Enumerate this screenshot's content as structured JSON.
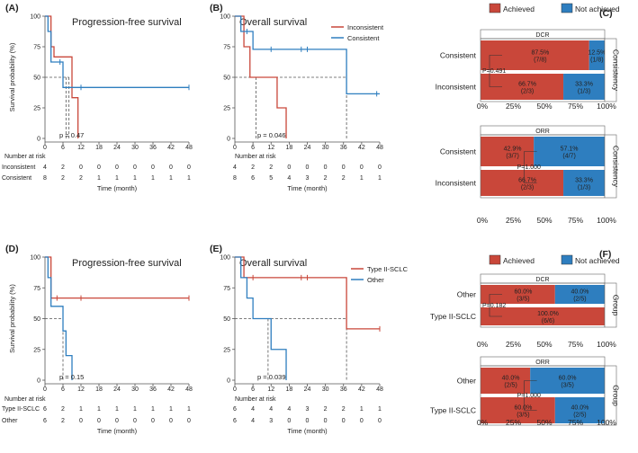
{
  "colors": {
    "red": "#c9473a",
    "blue": "#2e7ebf",
    "dash": "#555555",
    "axis": "#555555"
  },
  "chart_data": [
    {
      "id": "A",
      "type": "line",
      "label": "(A)",
      "title": "Progression-free survival",
      "ylabel": "Survival probability (%)",
      "xlabel": "Time (month)",
      "xticks": [
        "0",
        "6",
        "12",
        "18",
        "24",
        "30",
        "36",
        "42",
        "48"
      ],
      "yticks": [
        "0",
        "25",
        "50",
        "75",
        "100"
      ],
      "xlim": [
        0,
        48
      ],
      "ylim": [
        0,
        100
      ],
      "pvalue": "p = 0.47",
      "series": [
        {
          "name": "Inconsistent",
          "color": "red",
          "steps": [
            [
              0,
              100
            ],
            [
              1,
              100
            ],
            [
              2,
              75
            ],
            [
              3,
              66.7
            ],
            [
              9,
              33.3
            ],
            [
              11,
              0
            ]
          ],
          "censors": []
        },
        {
          "name": "Consistent",
          "color": "blue",
          "steps": [
            [
              0,
              100
            ],
            [
              1,
              87.5
            ],
            [
              2,
              62.5
            ],
            [
              6,
              41.7
            ],
            [
              48,
              41.7
            ]
          ],
          "censors": [
            [
              5,
              62.5
            ],
            [
              12,
              41.7
            ],
            [
              48,
              41.7
            ]
          ]
        }
      ],
      "medians": [
        7,
        8
      ],
      "risk_title": "Number at risk",
      "risk_rows": [
        {
          "label": "Inconsistent",
          "values": [
            "4",
            "2",
            "0",
            "0",
            "0",
            "0",
            "0",
            "0",
            "0"
          ]
        },
        {
          "label": "Consistent",
          "values": [
            "8",
            "2",
            "2",
            "1",
            "1",
            "1",
            "1",
            "1",
            "1"
          ]
        }
      ]
    },
    {
      "id": "B",
      "type": "line",
      "label": "(B)",
      "title": "Overall survival",
      "ylabel": "",
      "xlabel": "Time (month)",
      "xticks": [
        "0",
        "6",
        "12",
        "18",
        "24",
        "30",
        "36",
        "42",
        "48"
      ],
      "yticks": [
        "0",
        "25",
        "50",
        "75",
        "100"
      ],
      "xlim": [
        0,
        48
      ],
      "ylim": [
        0,
        100
      ],
      "pvalue": "p = 0.046",
      "legend": [
        "Inconsistent",
        "Consistent"
      ],
      "series": [
        {
          "name": "Inconsistent",
          "color": "red",
          "steps": [
            [
              0,
              100
            ],
            [
              3,
              75
            ],
            [
              5,
              50
            ],
            [
              12,
              50
            ],
            [
              14,
              25
            ],
            [
              17,
              0
            ]
          ],
          "censors": []
        },
        {
          "name": "Consistent",
          "color": "blue",
          "steps": [
            [
              0,
              100
            ],
            [
              2,
              87.5
            ],
            [
              6,
              72.9
            ],
            [
              37,
              36.5
            ],
            [
              48,
              36.5
            ]
          ],
          "censors": [
            [
              4,
              87.5
            ],
            [
              12,
              72.9
            ],
            [
              22,
              72.9
            ],
            [
              24,
              72.9
            ],
            [
              47,
              36.5
            ]
          ]
        }
      ],
      "medians": [
        7,
        37
      ],
      "risk_title": "Number at risk",
      "risk_rows": [
        {
          "label": "",
          "values": [
            "4",
            "2",
            "2",
            "0",
            "0",
            "0",
            "0",
            "0",
            "0"
          ]
        },
        {
          "label": "",
          "values": [
            "8",
            "6",
            "5",
            "4",
            "3",
            "2",
            "2",
            "1",
            "1"
          ]
        }
      ]
    },
    {
      "id": "C",
      "type": "bar",
      "label": "(C)",
      "legend": [
        "Achieved",
        "Not achieved"
      ],
      "xticks": [
        "0%",
        "25%",
        "50%",
        "75%",
        "100%"
      ],
      "side_label": "Consistency",
      "groups": [
        {
          "title": "DCR",
          "pvalue": "P=0.491",
          "rows": [
            {
              "category": "Consistent",
              "achieved": 87.5,
              "achieved_label": "87.5%",
              "achieved_count": "(7/8)",
              "not_achieved": 12.5,
              "not_label": "12.5%",
              "not_count": "(1/8)"
            },
            {
              "category": "Inconsistent",
              "achieved": 66.7,
              "achieved_label": "66.7%",
              "achieved_count": "(2/3)",
              "not_achieved": 33.3,
              "not_label": "33.3%",
              "not_count": "(1/3)"
            }
          ]
        },
        {
          "title": "ORR",
          "pvalue": "P=1.000",
          "rows": [
            {
              "category": "Consistent",
              "achieved": 42.9,
              "achieved_label": "42.9%",
              "achieved_count": "(3/7)",
              "not_achieved": 57.1,
              "not_label": "57.1%",
              "not_count": "(4/7)"
            },
            {
              "category": "Inconsistent",
              "achieved": 66.7,
              "achieved_label": "66.7%",
              "achieved_count": "(2/3)",
              "not_achieved": 33.3,
              "not_label": "33.3%",
              "not_count": "(1/3)"
            }
          ]
        }
      ]
    },
    {
      "id": "D",
      "type": "line",
      "label": "(D)",
      "title": "Progression-free survival",
      "ylabel": "Survival probability (%)",
      "xlabel": "Time (month)",
      "xticks": [
        "0",
        "6",
        "12",
        "18",
        "24",
        "30",
        "36",
        "42",
        "48"
      ],
      "yticks": [
        "0",
        "25",
        "50",
        "75",
        "100"
      ],
      "xlim": [
        0,
        48
      ],
      "ylim": [
        0,
        100
      ],
      "pvalue": "p = 0.15",
      "series": [
        {
          "name": "Type II-SCLC",
          "color": "red",
          "steps": [
            [
              0,
              100
            ],
            [
              2,
              66.7
            ],
            [
              48,
              66.7
            ]
          ],
          "censors": [
            [
              4,
              66.7
            ],
            [
              12,
              66.7
            ],
            [
              48,
              66.7
            ]
          ]
        },
        {
          "name": "Other",
          "color": "blue",
          "steps": [
            [
              0,
              100
            ],
            [
              1,
              83.3
            ],
            [
              2,
              60
            ],
            [
              6,
              40
            ],
            [
              7,
              20
            ],
            [
              9,
              0
            ]
          ],
          "censors": []
        }
      ],
      "medians": [
        6
      ],
      "risk_title": "Number at risk",
      "risk_rows": [
        {
          "label": "Type II-SCLC",
          "values": [
            "6",
            "2",
            "1",
            "1",
            "1",
            "1",
            "1",
            "1",
            "1"
          ]
        },
        {
          "label": "Other",
          "values": [
            "6",
            "2",
            "0",
            "0",
            "0",
            "0",
            "0",
            "0",
            "0"
          ]
        }
      ]
    },
    {
      "id": "E",
      "type": "line",
      "label": "(E)",
      "title": "Overall survival",
      "ylabel": "",
      "xlabel": "Time (month)",
      "xticks": [
        "0",
        "6",
        "12",
        "18",
        "24",
        "30",
        "36",
        "42",
        "48"
      ],
      "yticks": [
        "0",
        "25",
        "50",
        "75",
        "100"
      ],
      "xlim": [
        0,
        48
      ],
      "ylim": [
        0,
        100
      ],
      "pvalue": "p = 0.039",
      "legend": [
        "Type II-SCLC",
        "Other"
      ],
      "series": [
        {
          "name": "Type II-SCLC",
          "color": "red",
          "steps": [
            [
              0,
              100
            ],
            [
              3,
              83.3
            ],
            [
              37,
              41.7
            ],
            [
              48,
              41.7
            ]
          ],
          "censors": [
            [
              6,
              83.3
            ],
            [
              22,
              83.3
            ],
            [
              24,
              83.3
            ],
            [
              48,
              41.7
            ]
          ]
        },
        {
          "name": "Other",
          "color": "blue",
          "steps": [
            [
              0,
              100
            ],
            [
              2,
              83.3
            ],
            [
              4,
              66.7
            ],
            [
              6,
              50
            ],
            [
              12,
              25
            ],
            [
              17,
              0
            ]
          ],
          "censors": []
        }
      ],
      "medians": [
        11,
        37
      ],
      "risk_title": "Number at risk",
      "risk_rows": [
        {
          "label": "",
          "values": [
            "6",
            "4",
            "4",
            "4",
            "3",
            "2",
            "2",
            "1",
            "1"
          ]
        },
        {
          "label": "",
          "values": [
            "6",
            "4",
            "3",
            "0",
            "0",
            "0",
            "0",
            "0",
            "0"
          ]
        }
      ]
    },
    {
      "id": "F",
      "type": "bar",
      "label": "(F)",
      "legend": [
        "Achieved",
        "Not achieved"
      ],
      "xticks": [
        "0%",
        "25%",
        "50%",
        "75%",
        "100%"
      ],
      "side_label": "Group",
      "groups": [
        {
          "title": "DCR",
          "pvalue": "P=0.182",
          "rows": [
            {
              "category": "Other",
              "achieved": 60,
              "achieved_label": "60.0%",
              "achieved_count": "(3/5)",
              "not_achieved": 40,
              "not_label": "40.0%",
              "not_count": "(2/5)"
            },
            {
              "category": "Type II-SCLC",
              "achieved": 100,
              "achieved_label": "100.0%",
              "achieved_count": "(6/6)",
              "not_achieved": 0,
              "not_label": "",
              "not_count": ""
            }
          ]
        },
        {
          "title": "ORR",
          "pvalue": "P=1.000",
          "rows": [
            {
              "category": "Other",
              "achieved": 40,
              "achieved_label": "40.0%",
              "achieved_count": "(2/5)",
              "not_achieved": 60,
              "not_label": "60.0%",
              "not_count": "(3/5)"
            },
            {
              "category": "Type II-SCLC",
              "achieved": 60,
              "achieved_label": "60.0%",
              "achieved_count": "(3/5)",
              "not_achieved": 40,
              "not_label": "40.0%",
              "not_count": "(2/5)"
            }
          ]
        }
      ]
    }
  ]
}
